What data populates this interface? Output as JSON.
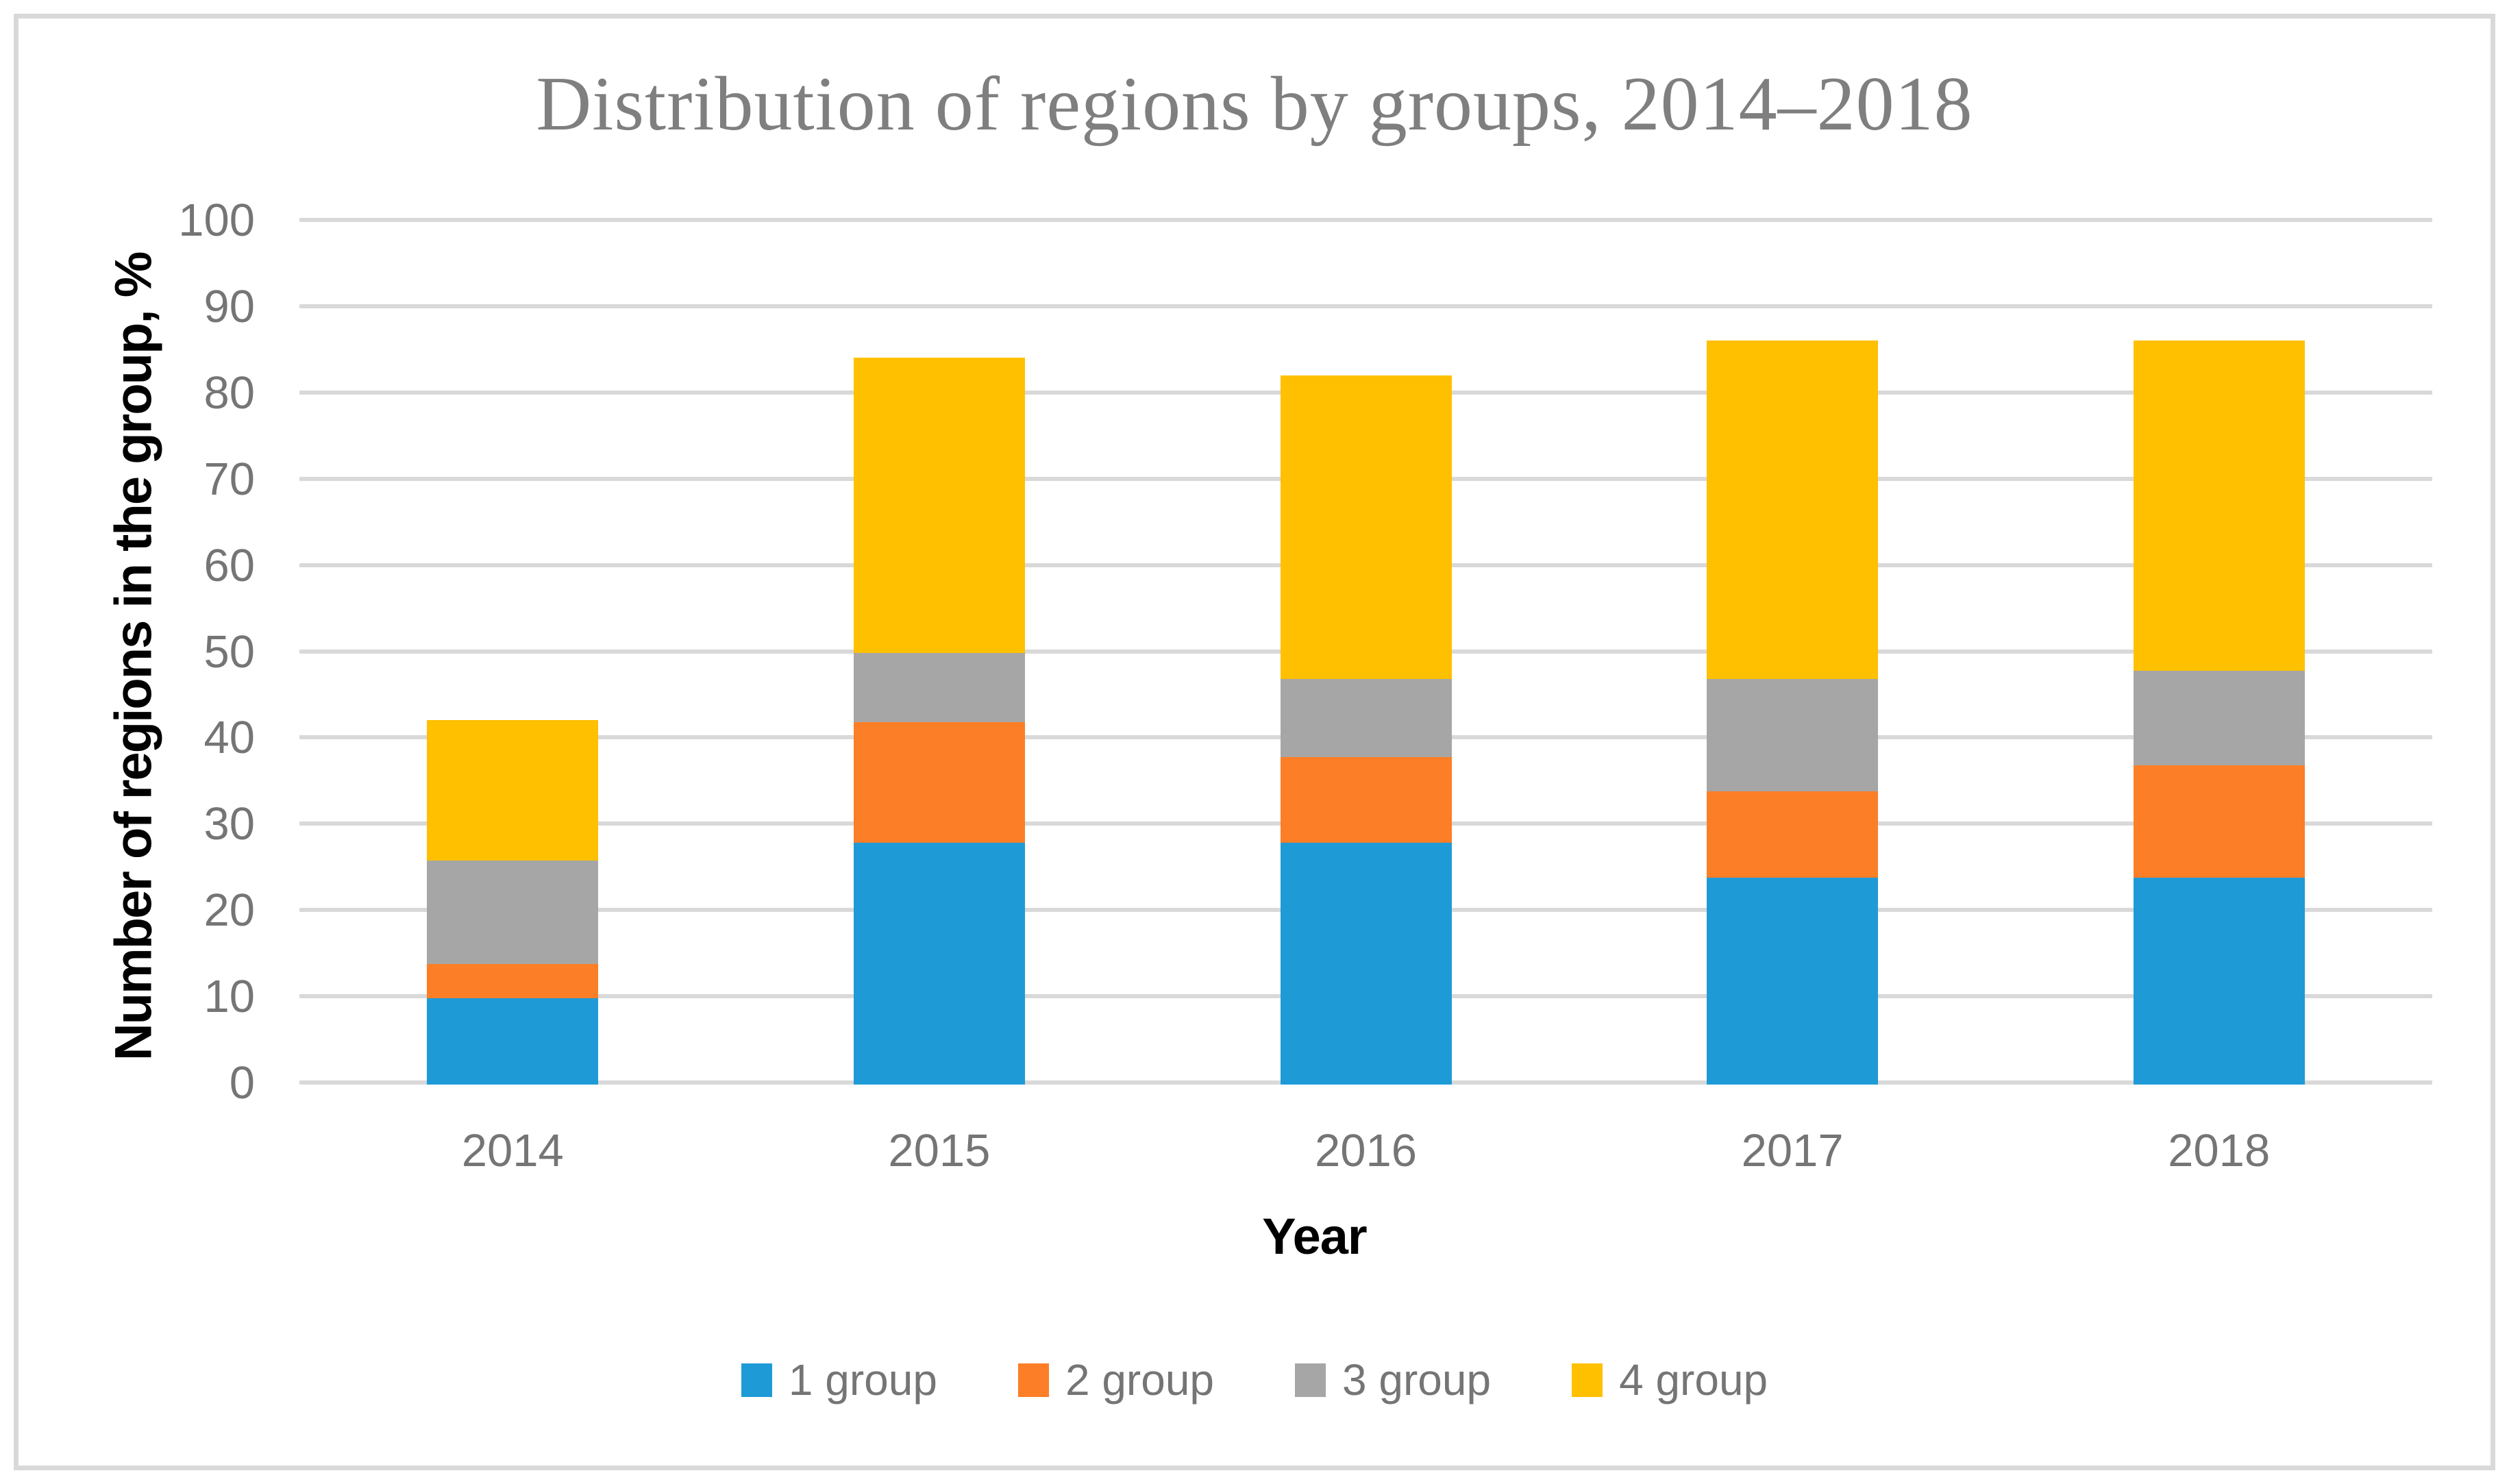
{
  "title": "Distribution of regions by groups, 2014–2018",
  "chart_data": {
    "type": "bar",
    "stacked": true,
    "title": "Distribution of regions by groups, 2014–2018",
    "categories": [
      "2014",
      "2015",
      "2016",
      "2017",
      "2018"
    ],
    "series": [
      {
        "name": "1 group",
        "color": "#1E9BD7",
        "values": [
          10,
          28,
          28,
          24,
          24
        ]
      },
      {
        "name": "2 group",
        "color": "#FC7E27",
        "values": [
          4,
          14,
          10,
          10,
          13
        ]
      },
      {
        "name": "3 group",
        "color": "#A6A6A6",
        "values": [
          12,
          8,
          9,
          13,
          11
        ]
      },
      {
        "name": "4 group",
        "color": "#FFC000",
        "values": [
          16,
          34,
          35,
          39,
          38
        ]
      }
    ],
    "stack_totals": [
      42,
      84,
      82,
      86,
      86
    ],
    "xlabel": "Year",
    "ylabel": "Number of regions in the group, %",
    "ylim": [
      0,
      100
    ],
    "yticks": [
      0,
      10,
      20,
      30,
      40,
      50,
      60,
      70,
      80,
      90,
      100
    ],
    "grid": true,
    "gridline_color": "#D9D9D9",
    "tick_label_color": "#757575",
    "title_color": "#7F7F7F",
    "legend_position": "bottom"
  }
}
